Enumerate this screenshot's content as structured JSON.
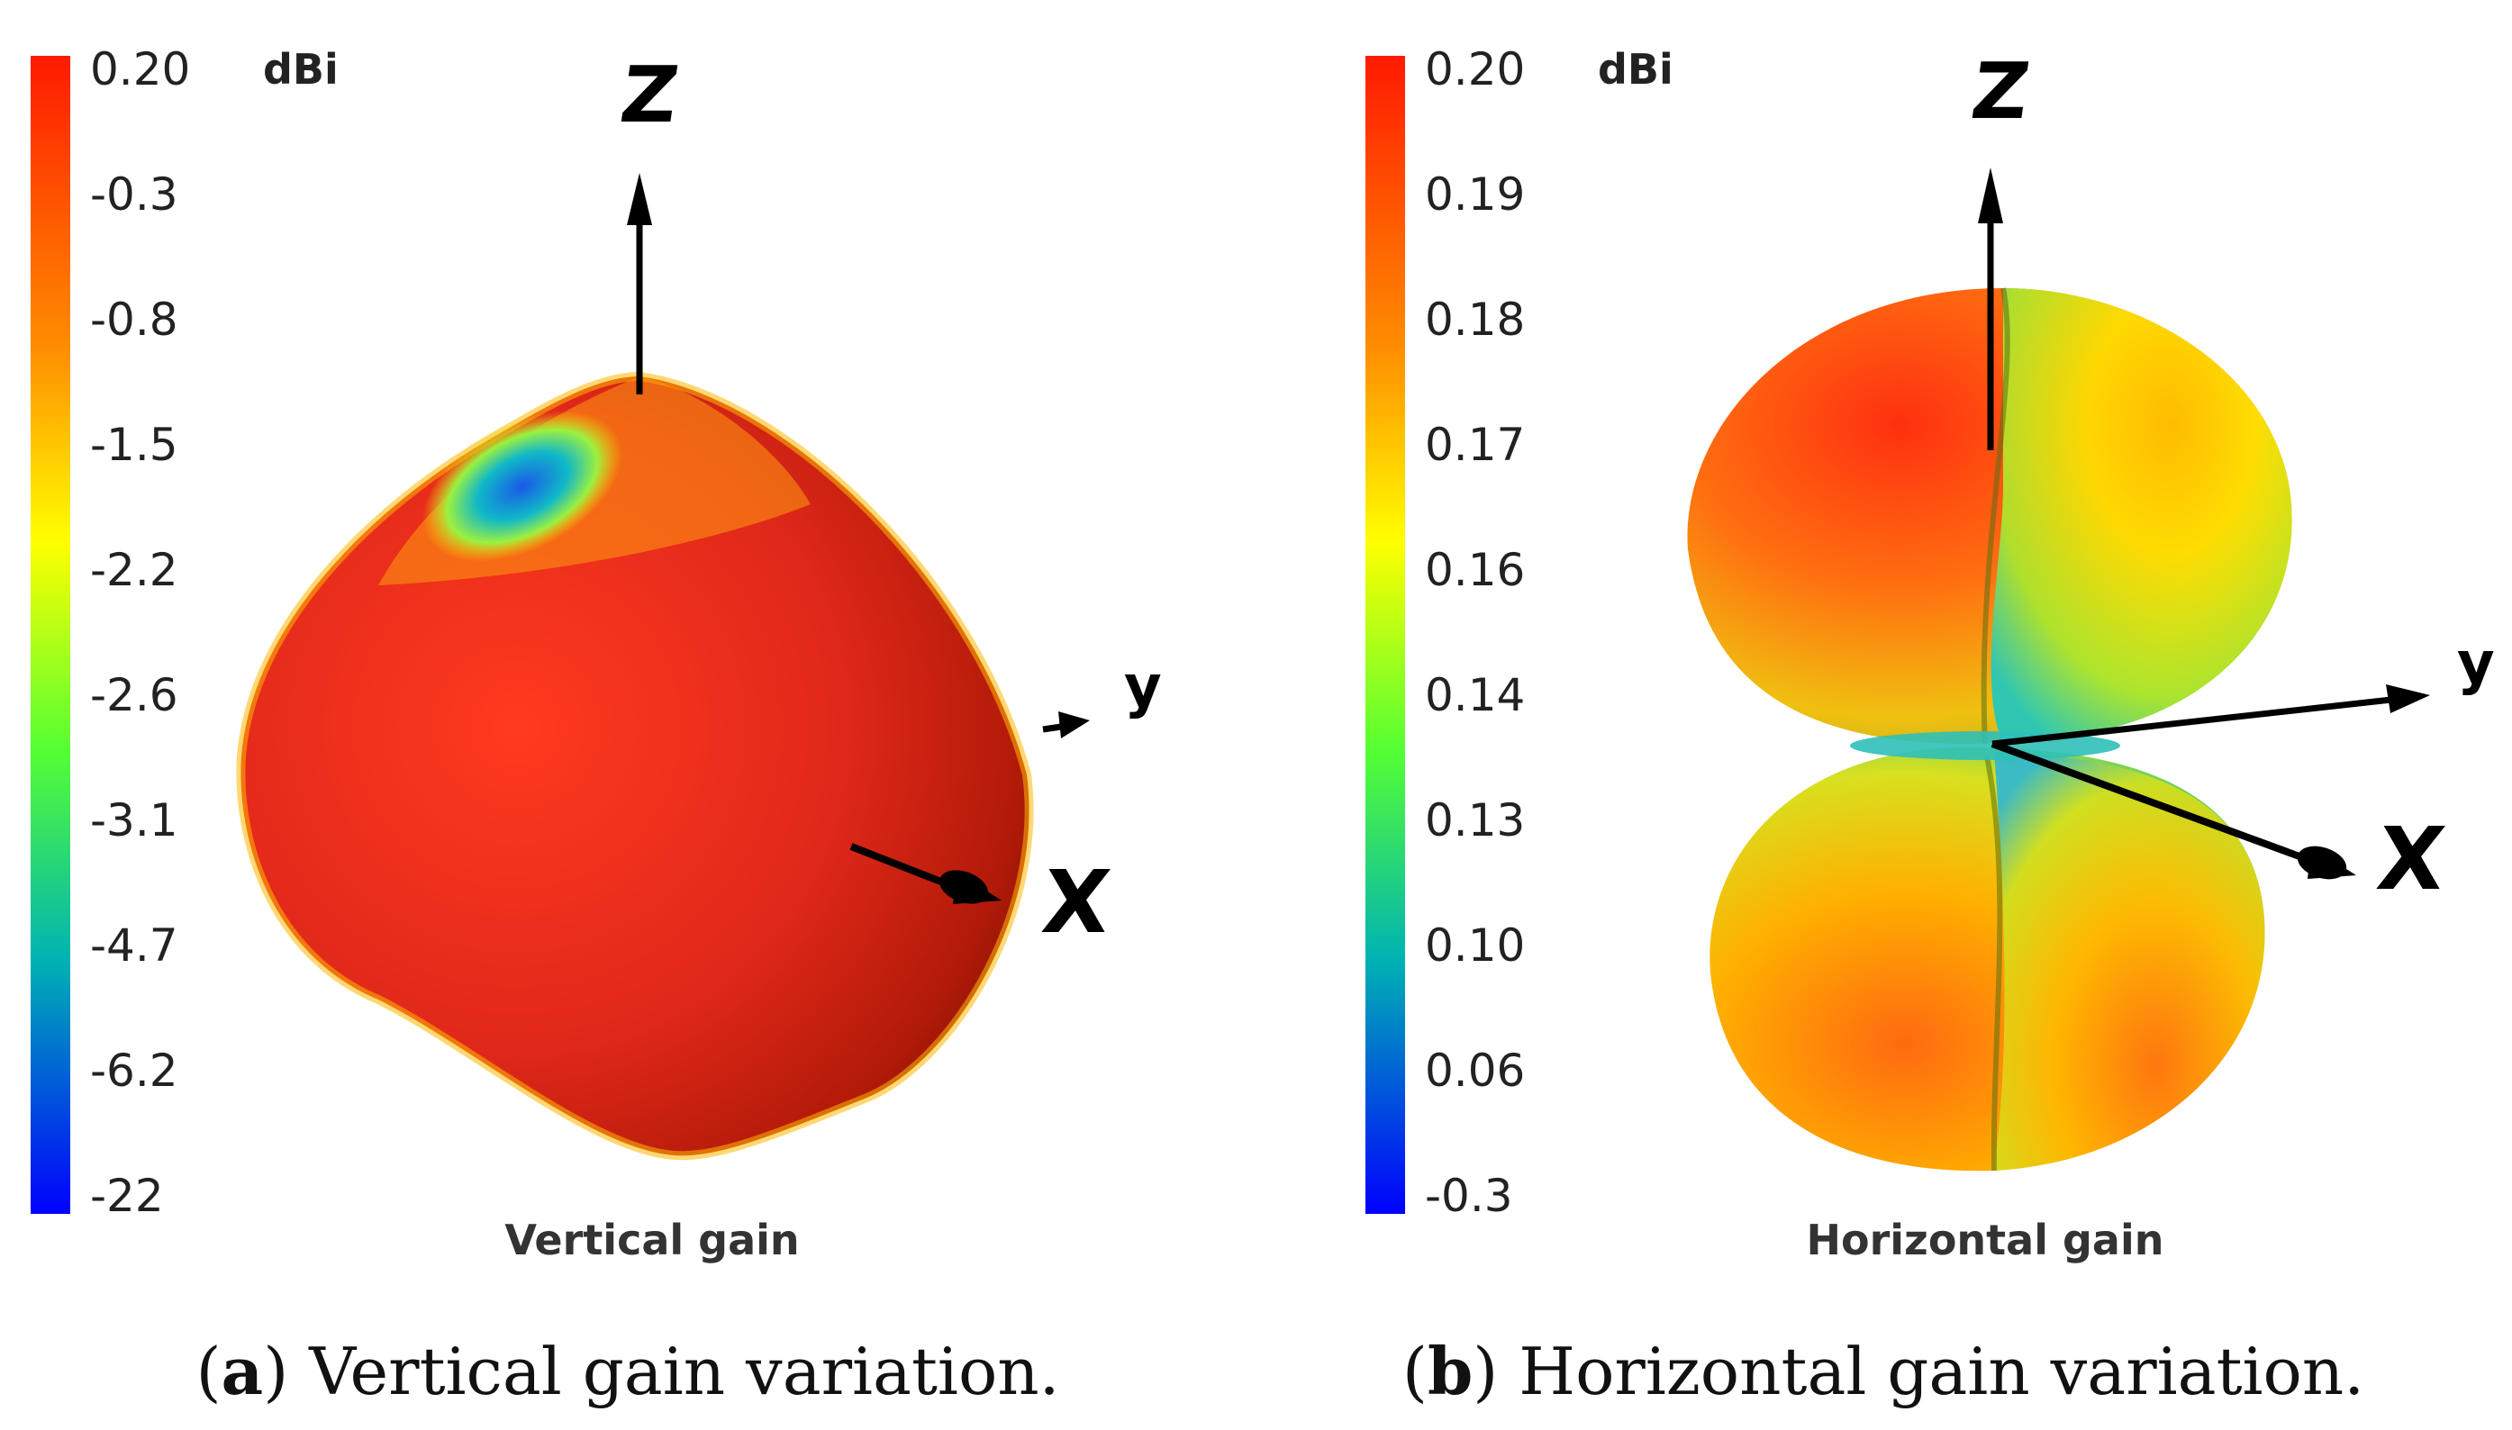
{
  "panels": [
    {
      "id": "a",
      "plot_title": "Vertical gain",
      "unit": "dBi",
      "colorbar_ticks": [
        "0.20",
        "-0.3",
        "-0.8",
        "-1.5",
        "-2.2",
        "-2.6",
        "-3.1",
        "-4.7",
        "-6.2",
        "-22"
      ],
      "axis_labels": {
        "z": "Z",
        "y": "y",
        "x": "X"
      },
      "caption_letter": "a",
      "caption_text": "Vertical gain variation."
    },
    {
      "id": "b",
      "plot_title": "Horizontal gain",
      "unit": "dBi",
      "colorbar_ticks": [
        "0.20",
        "0.19",
        "0.18",
        "0.17",
        "0.16",
        "0.14",
        "0.13",
        "0.10",
        "0.06",
        "-0.3"
      ],
      "axis_labels": {
        "z": "Z",
        "y": "y",
        "x": "X"
      },
      "caption_letter": "b",
      "caption_text": "Horizontal gain variation."
    }
  ],
  "colors": {
    "colorbar_top": "#ff1a00",
    "colorbar_orange": "#ff8c00",
    "colorbar_yellow": "#ffff00",
    "colorbar_green": "#55ff33",
    "colorbar_cyan": "#00b3b3",
    "colorbar_bottom": "#0000ff",
    "surface_red": "#e8321a",
    "surface_dark": "#8a1205"
  }
}
